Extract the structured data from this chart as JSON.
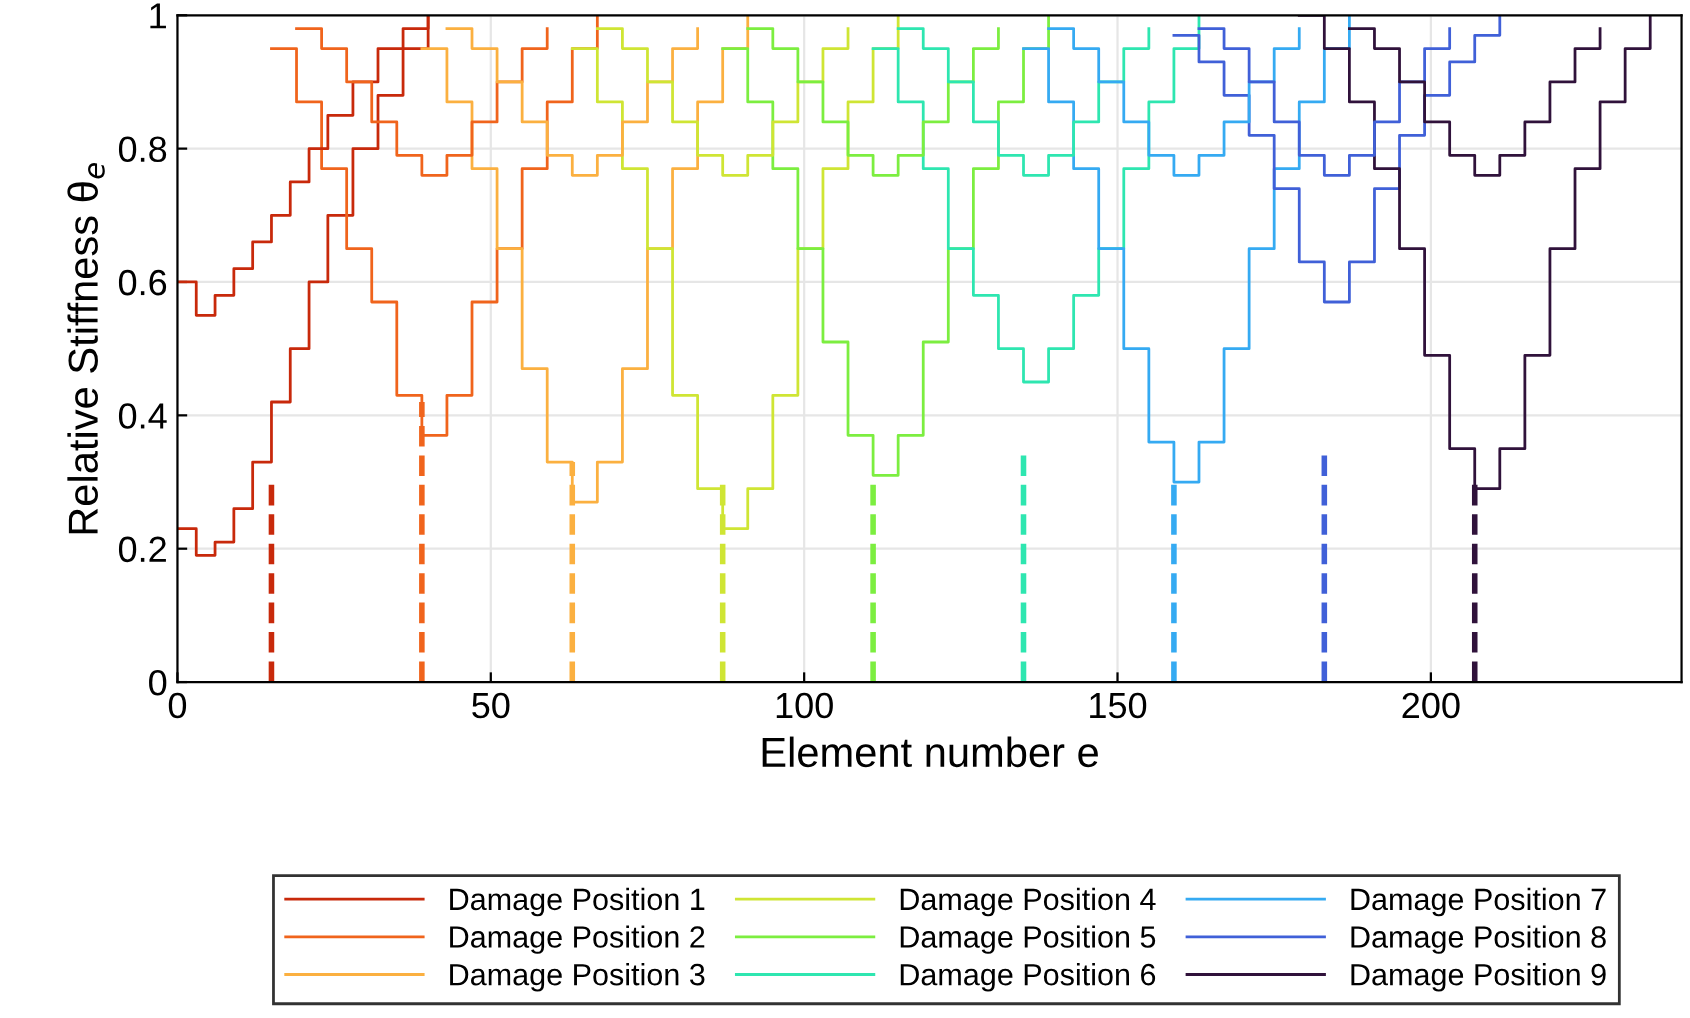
{
  "chart_data": {
    "type": "step",
    "xlabel": "Element number e",
    "ylabel": "Relative Stiffness θ$_{e}$",
    "xlim": [
      0,
      240
    ],
    "xticks": [
      0,
      50,
      100,
      150,
      200
    ],
    "ylim": [
      0,
      1
    ],
    "yticks": [
      0,
      0.2,
      0.4,
      0.6,
      0.8,
      1
    ],
    "grid": true,
    "legend": "bottom",
    "series": [
      {
        "name": "Damage Position 1",
        "color": "#c8290b",
        "x": [
          0,
          3,
          6,
          9,
          12,
          15,
          18,
          21,
          24,
          28,
          32,
          36,
          40
        ],
        "values": [
          0.23,
          0.19,
          0.21,
          0.26,
          0.33,
          0.42,
          0.5,
          0.6,
          0.7,
          0.8,
          0.88,
          0.95,
          1
        ]
      },
      {
        "name": "Damage Position 2",
        "color": "#f0641c",
        "x": [
          15,
          19,
          23,
          27,
          31,
          35,
          39,
          43,
          47,
          51,
          55,
          59,
          63,
          67
        ],
        "values": [
          0.95,
          0.87,
          0.77,
          0.65,
          0.57,
          0.43,
          0.37,
          0.43,
          0.57,
          0.65,
          0.77,
          0.87,
          0.95,
          1
        ]
      },
      {
        "name": "Damage Position 3",
        "color": "#fbb040",
        "x": [
          39,
          43,
          47,
          51,
          55,
          59,
          63,
          67,
          71,
          75,
          79,
          83,
          87,
          91
        ],
        "values": [
          0.95,
          0.87,
          0.77,
          0.65,
          0.47,
          0.33,
          0.27,
          0.33,
          0.47,
          0.65,
          0.77,
          0.87,
          0.95,
          1
        ]
      },
      {
        "name": "Damage Position 4",
        "color": "#cfe534",
        "x": [
          63,
          67,
          71,
          75,
          79,
          83,
          87,
          91,
          95,
          99,
          103,
          107,
          111,
          115
        ],
        "values": [
          0.95,
          0.87,
          0.77,
          0.65,
          0.43,
          0.29,
          0.23,
          0.29,
          0.43,
          0.65,
          0.77,
          0.87,
          0.95,
          1
        ]
      },
      {
        "name": "Damage Position 5",
        "color": "#7cee40",
        "x": [
          87,
          91,
          95,
          99,
          103,
          107,
          111,
          115,
          119,
          123,
          127,
          131,
          135,
          139
        ],
        "values": [
          0.95,
          0.87,
          0.77,
          0.65,
          0.51,
          0.37,
          0.31,
          0.37,
          0.51,
          0.65,
          0.77,
          0.87,
          0.95,
          1
        ]
      },
      {
        "name": "Damage Position 6",
        "color": "#2ee6b0",
        "x": [
          111,
          115,
          119,
          123,
          127,
          131,
          135,
          139,
          143,
          147,
          151,
          155,
          159,
          163
        ],
        "values": [
          0.95,
          0.87,
          0.77,
          0.65,
          0.58,
          0.5,
          0.45,
          0.5,
          0.58,
          0.65,
          0.77,
          0.87,
          0.95,
          1
        ]
      },
      {
        "name": "Damage Position 7",
        "color": "#35aaf2",
        "x": [
          135,
          139,
          143,
          147,
          151,
          155,
          159,
          163,
          167,
          171,
          175,
          179,
          183,
          187
        ],
        "values": [
          0.95,
          0.87,
          0.77,
          0.65,
          0.5,
          0.36,
          0.3,
          0.36,
          0.5,
          0.65,
          0.77,
          0.87,
          0.95,
          1
        ]
      },
      {
        "name": "Damage Position 8",
        "color": "#4060d8",
        "x": [
          159,
          163,
          167,
          171,
          175,
          179,
          183,
          187,
          191,
          195,
          199,
          203,
          207,
          211
        ],
        "values": [
          0.97,
          0.93,
          0.88,
          0.82,
          0.74,
          0.63,
          0.57,
          0.63,
          0.74,
          0.82,
          0.88,
          0.93,
          0.97,
          1
        ]
      },
      {
        "name": "Damage Position 9",
        "color": "#30123b",
        "x": [
          179,
          183,
          187,
          191,
          195,
          199,
          203,
          207,
          211,
          215,
          219,
          223,
          227,
          231,
          235
        ],
        "values": [
          1,
          0.95,
          0.87,
          0.77,
          0.65,
          0.49,
          0.35,
          0.29,
          0.35,
          0.49,
          0.65,
          0.77,
          0.87,
          0.95,
          1
        ]
      },
      {
        "color": "#c8290b",
        "x": [
          0,
          3,
          6,
          9,
          12,
          15,
          18,
          21,
          24,
          28,
          32,
          36,
          40
        ],
        "values": [
          0.6,
          0.55,
          0.58,
          0.62,
          0.66,
          0.7,
          0.75,
          0.8,
          0.85,
          0.9,
          0.95,
          0.98,
          1
        ]
      },
      {
        "color": "#f0641c",
        "x": [
          19,
          23,
          27,
          31,
          35,
          39,
          43,
          47,
          51,
          55,
          59
        ],
        "values": [
          0.98,
          0.95,
          0.9,
          0.84,
          0.79,
          0.76,
          0.79,
          0.84,
          0.9,
          0.95,
          0.98
        ]
      },
      {
        "color": "#fbb040",
        "x": [
          43,
          47,
          51,
          55,
          59,
          63,
          67,
          71,
          75,
          79,
          83
        ],
        "values": [
          0.98,
          0.95,
          0.9,
          0.84,
          0.79,
          0.76,
          0.79,
          0.84,
          0.9,
          0.95,
          0.98
        ]
      },
      {
        "color": "#cfe534",
        "x": [
          67,
          71,
          75,
          79,
          83,
          87,
          91,
          95,
          99,
          103,
          107
        ],
        "values": [
          0.98,
          0.95,
          0.9,
          0.84,
          0.79,
          0.76,
          0.79,
          0.84,
          0.9,
          0.95,
          0.98
        ]
      },
      {
        "color": "#7cee40",
        "x": [
          91,
          95,
          99,
          103,
          107,
          111,
          115,
          119,
          123,
          127,
          131
        ],
        "values": [
          0.98,
          0.95,
          0.9,
          0.84,
          0.79,
          0.76,
          0.79,
          0.84,
          0.9,
          0.95,
          0.98
        ]
      },
      {
        "color": "#2ee6b0",
        "x": [
          115,
          119,
          123,
          127,
          131,
          135,
          139,
          143,
          147,
          151,
          155
        ],
        "values": [
          0.98,
          0.95,
          0.9,
          0.84,
          0.79,
          0.76,
          0.79,
          0.84,
          0.9,
          0.95,
          0.98
        ]
      },
      {
        "color": "#35aaf2",
        "x": [
          139,
          143,
          147,
          151,
          155,
          159,
          163,
          167,
          171,
          175,
          179
        ],
        "values": [
          0.98,
          0.95,
          0.9,
          0.84,
          0.79,
          0.76,
          0.79,
          0.84,
          0.9,
          0.95,
          0.98
        ]
      },
      {
        "color": "#4060d8",
        "x": [
          163,
          167,
          171,
          175,
          179,
          183,
          187,
          191,
          195,
          199,
          203
        ],
        "values": [
          0.98,
          0.95,
          0.9,
          0.84,
          0.79,
          0.76,
          0.79,
          0.84,
          0.9,
          0.95,
          0.98
        ]
      },
      {
        "color": "#30123b",
        "x": [
          187,
          191,
          195,
          199,
          203,
          207,
          211,
          215,
          219,
          223,
          227
        ],
        "values": [
          0.98,
          0.95,
          0.9,
          0.84,
          0.79,
          0.76,
          0.79,
          0.84,
          0.9,
          0.95,
          0.98
        ]
      },
      {
        "type": "line",
        "line_style": "dashed",
        "color": "#c8290b",
        "x": [
          15,
          15
        ],
        "values": [
          0,
          0.3
        ]
      },
      {
        "type": "line",
        "line_style": "dashed",
        "color": "#f0641c",
        "x": [
          39,
          39
        ],
        "values": [
          0,
          0.42
        ]
      },
      {
        "type": "line",
        "line_style": "dashed",
        "color": "#fbb040",
        "x": [
          63,
          63
        ],
        "values": [
          0,
          0.33
        ]
      },
      {
        "type": "line",
        "line_style": "dashed",
        "color": "#cfe534",
        "x": [
          87,
          87
        ],
        "values": [
          0,
          0.3
        ]
      },
      {
        "type": "line",
        "line_style": "dashed",
        "color": "#7cee40",
        "x": [
          111,
          111
        ],
        "values": [
          0,
          0.3
        ]
      },
      {
        "type": "line",
        "line_style": "dashed",
        "color": "#2ee6b0",
        "x": [
          135,
          135
        ],
        "values": [
          0,
          0.35
        ]
      },
      {
        "type": "line",
        "line_style": "dashed",
        "color": "#35aaf2",
        "x": [
          159,
          159
        ],
        "values": [
          0,
          0.3
        ]
      },
      {
        "type": "line",
        "line_style": "dashed",
        "color": "#4060d8",
        "x": [
          183,
          183
        ],
        "values": [
          0,
          0.35
        ]
      },
      {
        "type": "line",
        "line_style": "dashed",
        "color": "#30123b",
        "x": [
          207,
          207
        ],
        "values": [
          0,
          0.3
        ]
      }
    ]
  }
}
